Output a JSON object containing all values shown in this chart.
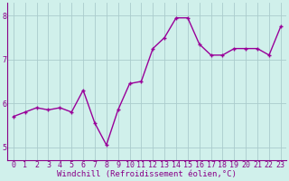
{
  "x": [
    0,
    1,
    2,
    3,
    4,
    5,
    6,
    7,
    8,
    9,
    10,
    11,
    12,
    13,
    14,
    15,
    16,
    17,
    18,
    19,
    20,
    21,
    22,
    23
  ],
  "y": [
    5.7,
    5.8,
    5.9,
    5.85,
    5.9,
    5.8,
    6.3,
    5.55,
    5.05,
    5.85,
    6.45,
    6.5,
    7.25,
    7.5,
    7.95,
    7.95,
    7.35,
    7.1,
    7.1,
    7.25,
    7.25,
    7.25,
    7.1,
    7.75
  ],
  "line_color": "#990099",
  "marker": "+",
  "marker_size": 3.5,
  "bg_color": "#d0f0eb",
  "grid_color": "#aacccc",
  "axis_label_color": "#880088",
  "tick_color": "#880088",
  "xlabel": "Windchill (Refroidissement éolien,°C)",
  "ylim": [
    4.7,
    8.3
  ],
  "yticks": [
    5,
    6,
    7,
    8
  ],
  "xticks": [
    0,
    1,
    2,
    3,
    4,
    5,
    6,
    7,
    8,
    9,
    10,
    11,
    12,
    13,
    14,
    15,
    16,
    17,
    18,
    19,
    20,
    21,
    22,
    23
  ],
  "xlabel_fontsize": 6.5,
  "tick_fontsize": 6.0,
  "line_width": 1.0
}
